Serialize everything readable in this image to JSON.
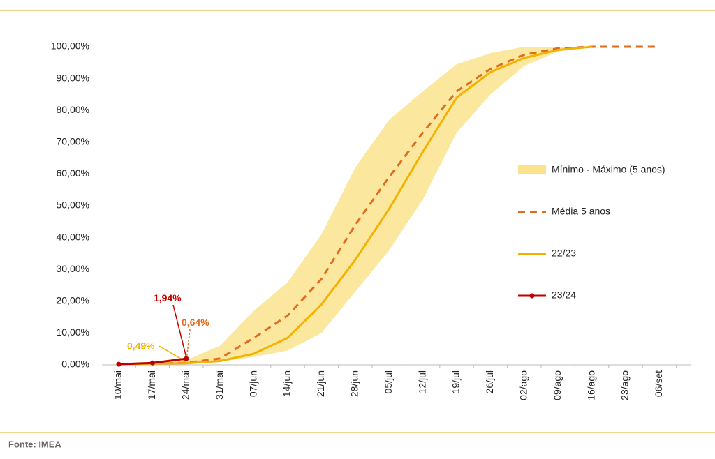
{
  "chart_data": {
    "type": "line",
    "categories": [
      "10/mai",
      "17/mai",
      "24/mai",
      "31/mai",
      "07/jun",
      "14/jun",
      "21/jun",
      "28/jun",
      "05/jul",
      "12/jul",
      "19/jul",
      "26/jul",
      "02/ago",
      "09/ago",
      "16/ago",
      "23/ago",
      "06/set"
    ],
    "ylim": [
      0,
      100
    ],
    "yticks": [
      {
        "value": 0,
        "label": "0,00%"
      },
      {
        "value": 10,
        "label": "10,00%"
      },
      {
        "value": 20,
        "label": "20,00%"
      },
      {
        "value": 30,
        "label": "30,00%"
      },
      {
        "value": 40,
        "label": "40,00%"
      },
      {
        "value": 50,
        "label": "50,00%"
      },
      {
        "value": 60,
        "label": "60,00%"
      },
      {
        "value": 70,
        "label": "70,00%"
      },
      {
        "value": 80,
        "label": "80,00%"
      },
      {
        "value": 90,
        "label": "90,00%"
      },
      {
        "value": 100,
        "label": "100,00%"
      }
    ],
    "band": {
      "name": "Mínimo - Máximo (5 anos)",
      "color": "#fbe38e",
      "min": [
        0.1,
        0.3,
        0.4,
        1.0,
        2.5,
        4.5,
        10,
        23,
        36,
        52,
        73,
        85,
        94,
        98.5,
        100,
        null,
        null
      ],
      "max": [
        0.3,
        0.6,
        1.5,
        6,
        17,
        26,
        41,
        62,
        77,
        86,
        94.5,
        98,
        100,
        100,
        100,
        null,
        null
      ]
    },
    "series": [
      {
        "name": "Média 5 anos",
        "color": "#e06c1f",
        "dash": true,
        "values": [
          0.2,
          0.4,
          0.64,
          2.0,
          8.5,
          15.5,
          27,
          44,
          59,
          73,
          86,
          93,
          97.5,
          99.5,
          100,
          100,
          100
        ],
        "value_labels": [
          null,
          null,
          "0,64%",
          null,
          null,
          null,
          null,
          null,
          null,
          null,
          null,
          null,
          null,
          null,
          null,
          null,
          null
        ]
      },
      {
        "name": "22/23",
        "color": "#f2b300",
        "dash": false,
        "values": [
          0.2,
          0.4,
          0.49,
          1.2,
          3.5,
          8.5,
          19,
          33,
          49,
          67,
          84,
          92,
          96.5,
          99,
          100,
          null,
          null
        ],
        "value_labels": [
          null,
          null,
          "0,49%",
          null,
          null,
          null,
          null,
          null,
          null,
          null,
          null,
          null,
          null,
          null,
          null,
          null,
          null
        ]
      },
      {
        "name": "23/24",
        "color": "#c00000",
        "dash": false,
        "markers": true,
        "values": [
          0.2,
          0.6,
          1.94,
          null,
          null,
          null,
          null,
          null,
          null,
          null,
          null,
          null,
          null,
          null,
          null,
          null,
          null
        ],
        "value_labels": [
          null,
          null,
          "1,94%",
          null,
          null,
          null,
          null,
          null,
          null,
          null,
          null,
          null,
          null,
          null,
          null,
          null,
          null
        ]
      }
    ]
  },
  "source": "Fonte: IMEA"
}
